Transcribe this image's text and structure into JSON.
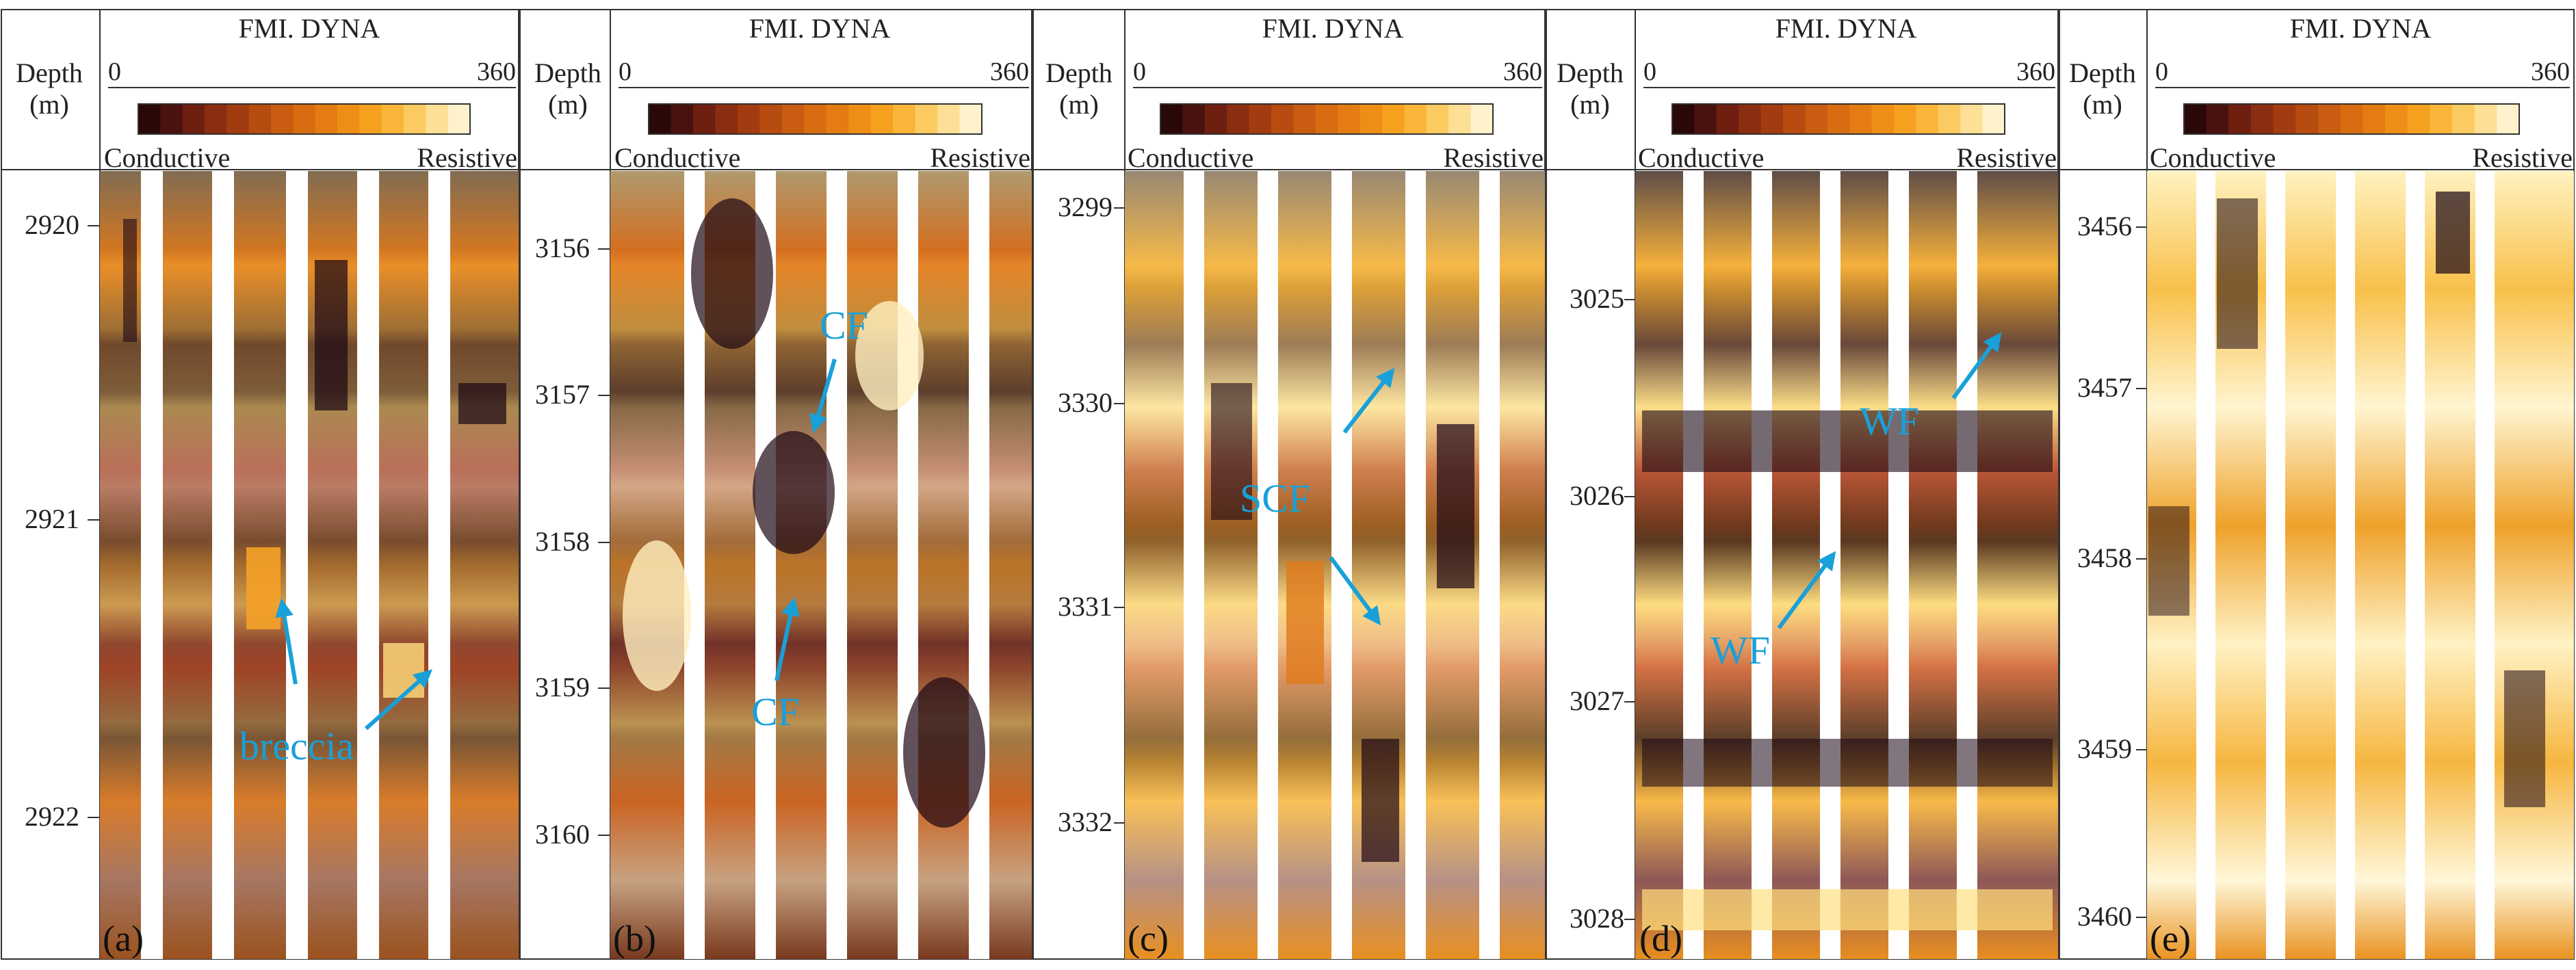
{
  "common": {
    "title": "FMI. DYNA",
    "depth_label_line1": "Depth",
    "depth_label_line2": "(m)",
    "scale_min": "0",
    "scale_max": "360",
    "conductive": "Conductive",
    "resistive": "Resistive"
  },
  "colors": {
    "annotation": "#19a0d8",
    "colorbar": [
      "#2a0808",
      "#4a120e",
      "#6e1f10",
      "#8a2d10",
      "#a23c10",
      "#b74c10",
      "#c95c10",
      "#d86c10",
      "#e47c12",
      "#ee8e16",
      "#f6a020",
      "#f9b53a",
      "#fbcb62",
      "#fddf96",
      "#fff1cc"
    ]
  },
  "panels": [
    {
      "letter": "(a)",
      "depth_ticks": [
        "2920",
        "2921",
        "2922"
      ],
      "annotations": [
        {
          "text": "breccia"
        }
      ]
    },
    {
      "letter": "(b)",
      "depth_ticks": [
        "3156",
        "3157",
        "3158",
        "3159",
        "3160"
      ],
      "annotations": [
        {
          "text": "CF"
        },
        {
          "text": "CF"
        }
      ]
    },
    {
      "letter": "(c)",
      "depth_ticks": [
        "3299",
        "3330",
        "3331",
        "3332"
      ],
      "annotations": [
        {
          "text": "SCF"
        }
      ]
    },
    {
      "letter": "(d)",
      "depth_ticks": [
        "3025",
        "3026",
        "3027",
        "3028"
      ],
      "annotations": [
        {
          "text": "WF"
        },
        {
          "text": "WF"
        }
      ]
    },
    {
      "letter": "(e)",
      "depth_ticks": [
        "3456",
        "3457",
        "3458",
        "3459",
        "3460"
      ],
      "annotations": []
    }
  ]
}
